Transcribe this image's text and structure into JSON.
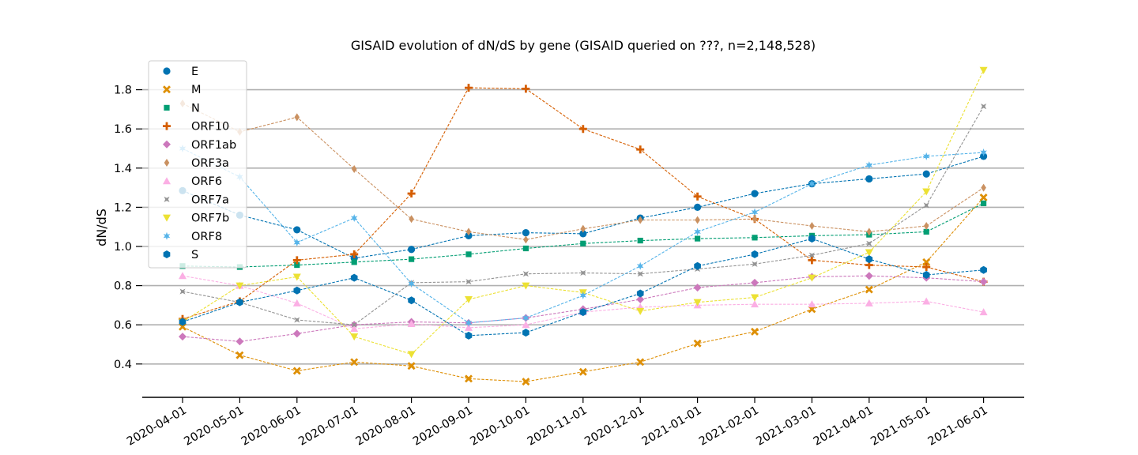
{
  "chart_data": {
    "type": "line",
    "title": "GISAID evolution of dN/dS by gene (GISAID queried on ???, n=2,148,528)",
    "xlabel": "",
    "ylabel": "dN/dS",
    "ylim": [
      0.3,
      1.95
    ],
    "yticks": [
      "0.4",
      "0.6",
      "0.8",
      "1.0",
      "1.2",
      "1.4",
      "1.6",
      "1.8"
    ],
    "grid": "horizontal",
    "legend_position": "top-left",
    "categories": [
      "2020-04-01",
      "2020-05-01",
      "2020-06-01",
      "2020-07-01",
      "2020-08-01",
      "2020-09-01",
      "2020-10-01",
      "2020-11-01",
      "2020-12-01",
      "2021-01-01",
      "2021-02-01",
      "2021-03-01",
      "2021-04-01",
      "2021-05-01",
      "2021-06-01"
    ],
    "series": [
      {
        "name": "E",
        "color": "#0173b2",
        "marker": "circle",
        "values": [
          1.285,
          1.16,
          1.085,
          0.94,
          0.985,
          1.055,
          1.07,
          1.065,
          1.145,
          1.2,
          1.27,
          1.32,
          1.345,
          1.37,
          1.46
        ]
      },
      {
        "name": "M",
        "color": "#de8f05",
        "marker": "x",
        "values": [
          0.59,
          0.445,
          0.365,
          0.41,
          0.39,
          0.325,
          0.31,
          0.36,
          0.41,
          0.505,
          0.565,
          0.68,
          0.78,
          0.92,
          1.25
        ]
      },
      {
        "name": "N",
        "color": "#029e73",
        "marker": "square",
        "values": [
          0.9,
          0.895,
          0.905,
          0.92,
          0.935,
          0.96,
          0.99,
          1.015,
          1.03,
          1.04,
          1.045,
          1.055,
          1.06,
          1.075,
          1.22
        ]
      },
      {
        "name": "ORF10",
        "color": "#d55e00",
        "marker": "plus",
        "values": [
          0.63,
          0.72,
          0.93,
          0.96,
          1.27,
          1.81,
          1.805,
          1.6,
          1.495,
          1.255,
          1.14,
          0.93,
          0.905,
          0.895,
          0.82
        ]
      },
      {
        "name": "ORF1ab",
        "color": "#cc78bc",
        "marker": "diamond",
        "values": [
          0.54,
          0.515,
          0.555,
          0.6,
          0.615,
          0.61,
          0.635,
          0.68,
          0.73,
          0.79,
          0.815,
          0.845,
          0.85,
          0.84,
          0.82
        ]
      },
      {
        "name": "ORF3a",
        "color": "#ca9161",
        "marker": "thin-diamond",
        "values": [
          1.73,
          1.585,
          1.66,
          1.395,
          1.14,
          1.075,
          1.035,
          1.09,
          1.135,
          1.135,
          1.14,
          1.105,
          1.075,
          1.105,
          1.3
        ]
      },
      {
        "name": "ORF6",
        "color": "#fbafe4",
        "marker": "triangle-up",
        "values": [
          0.85,
          0.8,
          0.71,
          0.58,
          0.605,
          0.585,
          0.6,
          0.665,
          0.69,
          0.7,
          0.705,
          0.705,
          0.71,
          0.72,
          0.665
        ]
      },
      {
        "name": "ORF7a",
        "color": "#949494",
        "marker": "star4",
        "values": [
          0.77,
          0.715,
          0.625,
          0.6,
          0.815,
          0.82,
          0.86,
          0.865,
          0.86,
          0.885,
          0.91,
          0.955,
          1.015,
          1.21,
          1.715
        ]
      },
      {
        "name": "ORF7b",
        "color": "#ece133",
        "marker": "triangle-down",
        "values": [
          0.615,
          0.8,
          0.845,
          0.54,
          0.45,
          0.73,
          0.8,
          0.765,
          0.67,
          0.715,
          0.74,
          0.84,
          0.97,
          1.28,
          1.9
        ]
      },
      {
        "name": "ORF8",
        "color": "#56b4e9",
        "marker": "star6",
        "values": [
          1.5,
          1.355,
          1.02,
          1.145,
          0.81,
          0.61,
          0.635,
          0.75,
          0.9,
          1.075,
          1.175,
          1.32,
          1.415,
          1.46,
          1.48
        ]
      },
      {
        "name": "S",
        "color": "#0173b2",
        "marker": "hexagon",
        "values": [
          0.615,
          0.715,
          0.775,
          0.84,
          0.725,
          0.545,
          0.56,
          0.665,
          0.76,
          0.9,
          0.96,
          1.04,
          0.935,
          0.855,
          0.88
        ]
      }
    ]
  }
}
